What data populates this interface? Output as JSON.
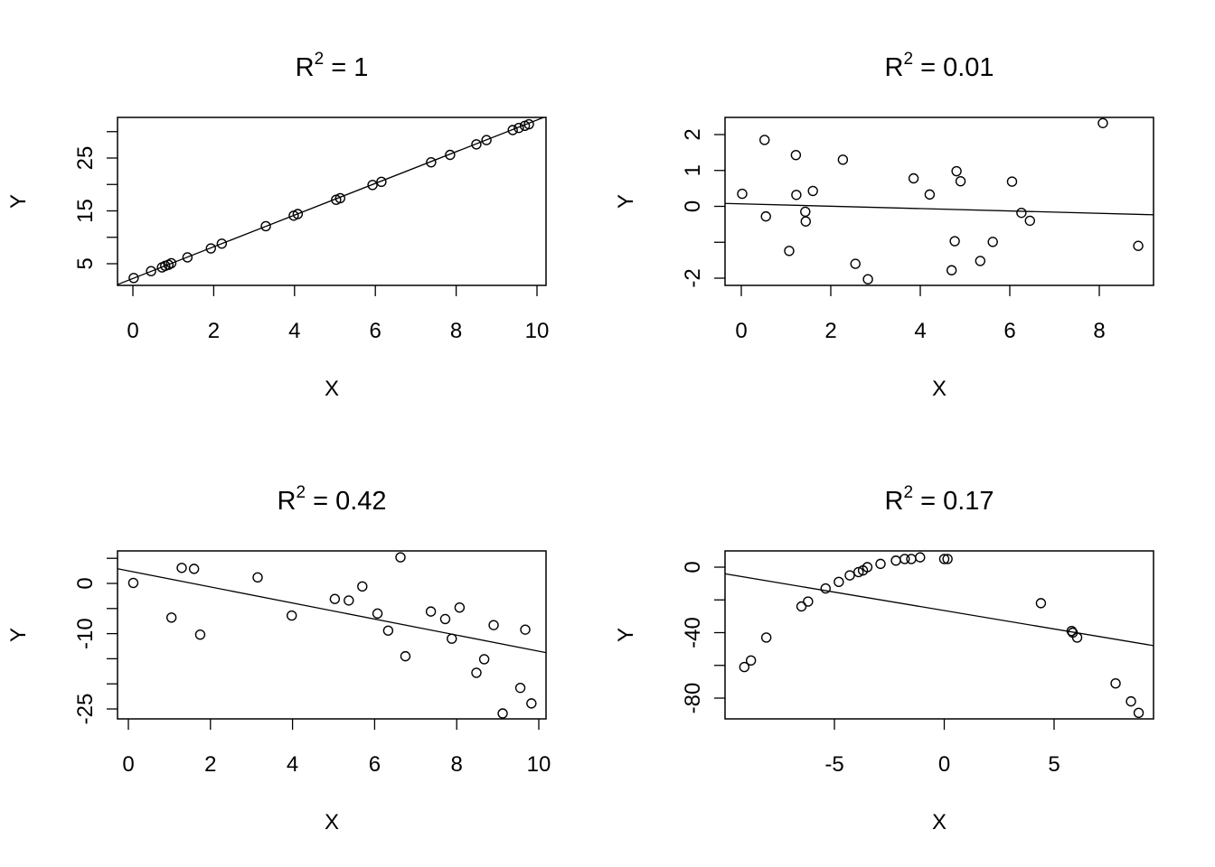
{
  "figure": {
    "layout": "2x2 grid of scatter plots with fitted regression lines",
    "background": "#ffffff",
    "point_color": "#000000",
    "line_color": "#000000"
  },
  "chart_data": [
    {
      "type": "scatter",
      "title": "R² = 1",
      "title_base": "R",
      "title_sup": "2",
      "title_rest": " = 1",
      "xlabel": "X",
      "ylabel": "Y",
      "xlim": [
        -0.4,
        10.2
      ],
      "ylim": [
        1,
        32.8
      ],
      "xticks": [
        0,
        2,
        4,
        6,
        8,
        10
      ],
      "xtick_labels": [
        "0",
        "2",
        "4",
        "6",
        "8",
        "10"
      ],
      "yticks": [
        5,
        10,
        15,
        20,
        25,
        30
      ],
      "ytick_labels": [
        "5",
        "",
        "15",
        "",
        "25",
        ""
      ],
      "regression_line": {
        "intercept": 2.2,
        "slope": 3.0
      },
      "points": {
        "x": [
          0.02,
          0.45,
          0.72,
          0.8,
          0.88,
          0.95,
          1.35,
          1.93,
          2.2,
          3.29,
          3.98,
          4.08,
          5.03,
          5.13,
          5.93,
          6.15,
          7.38,
          7.85,
          8.5,
          8.75,
          9.4,
          9.55,
          9.7,
          9.8
        ],
        "y": [
          2.3,
          3.6,
          4.3,
          4.6,
          4.8,
          5.1,
          6.2,
          7.9,
          8.8,
          12.1,
          14.1,
          14.4,
          17.1,
          17.4,
          19.9,
          20.5,
          24.2,
          25.6,
          27.6,
          28.4,
          30.3,
          30.7,
          31.1,
          31.4
        ]
      }
    },
    {
      "type": "scatter",
      "title": "R² = 0.01",
      "title_base": "R",
      "title_sup": "2",
      "title_rest": " = 0.01",
      "xlabel": "X",
      "ylabel": "Y",
      "xlim": [
        -0.35,
        9.2
      ],
      "ylim": [
        -2.2,
        2.5
      ],
      "xticks": [
        0,
        2,
        4,
        6,
        8
      ],
      "xtick_labels": [
        "0",
        "2",
        "4",
        "6",
        "8"
      ],
      "yticks": [
        -2,
        -1,
        0,
        1,
        2
      ],
      "ytick_labels": [
        "-2",
        "",
        "0",
        "1",
        "2"
      ],
      "regression_line": {
        "intercept": 0.07,
        "slope": -0.033
      },
      "points": {
        "x": [
          0.02,
          0.52,
          0.55,
          1.07,
          1.22,
          1.23,
          1.43,
          1.44,
          1.6,
          2.27,
          2.55,
          2.83,
          3.85,
          4.21,
          4.7,
          4.77,
          4.81,
          4.9,
          5.34,
          5.62,
          6.05,
          6.26,
          6.45,
          8.08,
          8.87
        ],
        "y": [
          0.35,
          1.85,
          -0.28,
          -1.24,
          1.43,
          0.32,
          -0.15,
          -0.42,
          0.43,
          1.3,
          -1.6,
          -2.03,
          0.78,
          0.33,
          -1.78,
          -0.97,
          0.98,
          0.7,
          -1.52,
          -0.99,
          0.69,
          -0.18,
          -0.4,
          2.32,
          -1.1
        ]
      }
    },
    {
      "type": "scatter",
      "title": "R² = 0.42",
      "title_base": "R",
      "title_sup": "2",
      "title_rest": " = 0.42",
      "xlabel": "X",
      "ylabel": "Y",
      "xlim": [
        -0.3,
        10.2
      ],
      "ylim": [
        -27,
        6.5
      ],
      "xticks": [
        0,
        2,
        4,
        6,
        8,
        10
      ],
      "xtick_labels": [
        "0",
        "2",
        "4",
        "6",
        "8",
        "10"
      ],
      "yticks": [
        -25,
        -20,
        -15,
        -10,
        -5,
        0,
        5
      ],
      "ytick_labels": [
        "-25",
        "",
        "",
        "-10",
        "",
        "0",
        ""
      ],
      "regression_line": {
        "intercept": 2.5,
        "slope": -1.6
      },
      "points": {
        "x": [
          0.12,
          1.05,
          1.3,
          1.6,
          1.75,
          3.15,
          3.98,
          5.03,
          5.37,
          5.7,
          6.07,
          6.33,
          6.63,
          6.75,
          7.37,
          7.72,
          7.88,
          8.07,
          8.48,
          8.67,
          8.9,
          9.12,
          9.55,
          9.67,
          9.82
        ],
        "y": [
          0.1,
          -6.8,
          3.1,
          2.9,
          -10.2,
          1.2,
          -6.4,
          -3.1,
          -3.4,
          -0.6,
          -6.0,
          -9.4,
          5.2,
          -14.5,
          -5.6,
          -7.1,
          -11.0,
          -4.8,
          -17.8,
          -15.1,
          -8.3,
          -25.9,
          -20.8,
          -9.2,
          -23.9
        ]
      }
    },
    {
      "type": "scatter",
      "title": "R² = 0.17",
      "title_base": "R",
      "title_sup": "2",
      "title_rest": " = 0.17",
      "xlabel": "X",
      "ylabel": "Y",
      "xlim": [
        -9.8,
        9.5
      ],
      "ylim": [
        -93,
        10
      ],
      "xticks": [
        -5,
        0,
        5
      ],
      "xtick_labels": [
        "-5",
        "0",
        "5"
      ],
      "yticks": [
        -80,
        -60,
        -40,
        -20,
        0
      ],
      "ytick_labels": [
        "-80",
        "",
        "-40",
        "",
        "0"
      ],
      "regression_line": {
        "intercept": -26.5,
        "slope": -2.25
      },
      "points": {
        "x": [
          -9.1,
          -8.8,
          -8.1,
          -6.5,
          -6.2,
          -5.4,
          -4.8,
          -4.3,
          -3.9,
          -3.7,
          -3.5,
          -2.9,
          -2.2,
          -1.8,
          -1.5,
          -1.1,
          0.0,
          0.15,
          4.4,
          5.8,
          5.85,
          6.05,
          7.8,
          8.5,
          8.85
        ],
        "y": [
          -61,
          -57,
          -43,
          -24,
          -21,
          -13,
          -9,
          -5,
          -3,
          -2,
          0,
          2,
          4,
          5,
          5,
          6,
          5,
          5,
          -22,
          -39,
          -40,
          -43,
          -71,
          -82,
          -89
        ]
      }
    }
  ],
  "panels": [
    {
      "title_base": "R",
      "title_sup": "2",
      "title_rest": " = 1",
      "xlabel": "X",
      "ylabel": "Y"
    },
    {
      "title_base": "R",
      "title_sup": "2",
      "title_rest": " = 0.01",
      "xlabel": "X",
      "ylabel": "Y"
    },
    {
      "title_base": "R",
      "title_sup": "2",
      "title_rest": " = 0.42",
      "xlabel": "X",
      "ylabel": "Y"
    },
    {
      "title_base": "R",
      "title_sup": "2",
      "title_rest": " = 0.17",
      "xlabel": "X",
      "ylabel": "Y"
    }
  ]
}
